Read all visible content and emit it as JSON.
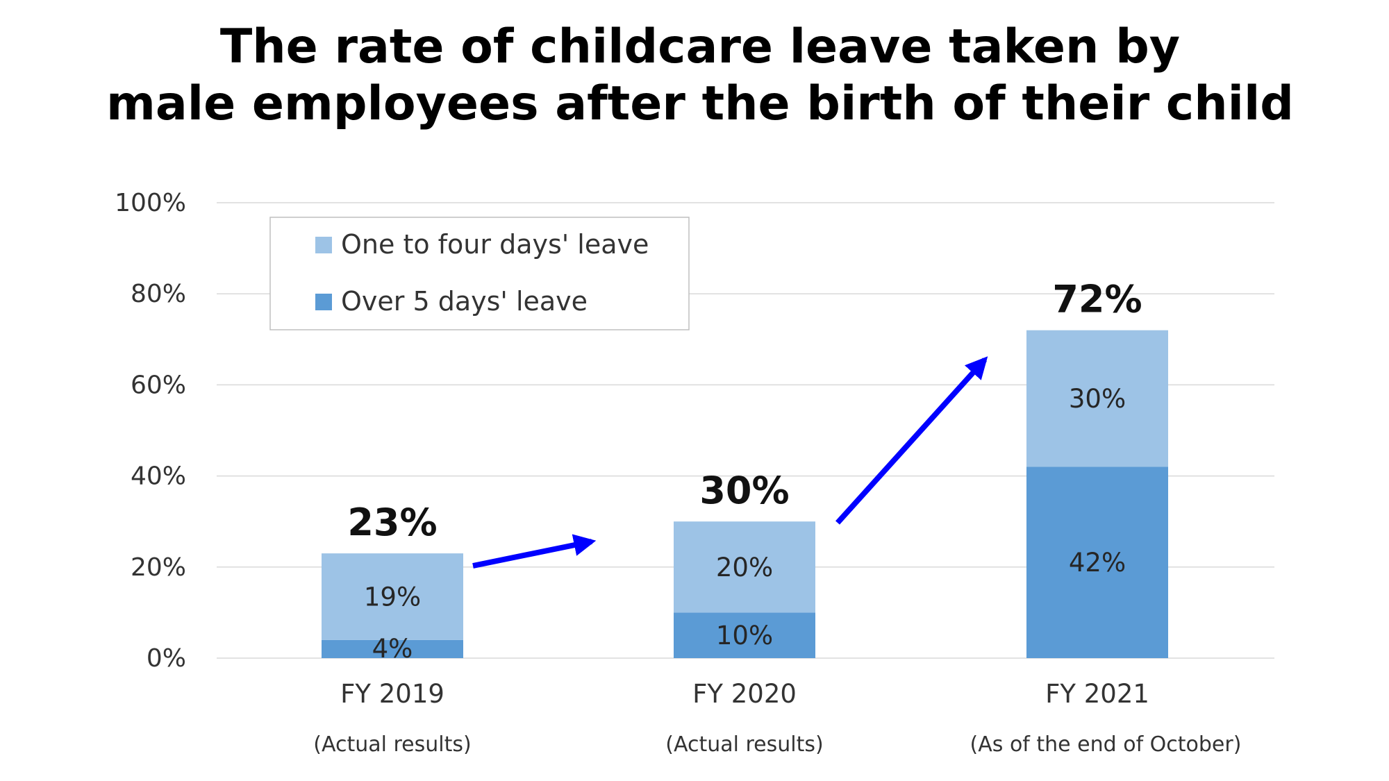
{
  "chart_data": {
    "type": "bar",
    "stacked": true,
    "title_lines": [
      "The rate of childcare leave taken by",
      "male employees after the birth of their child"
    ],
    "categories": [
      "FY 2019",
      "FY 2020",
      "FY 2021"
    ],
    "category_notes": [
      "(Actual results)",
      "(Actual results)",
      "(As of the end of October)"
    ],
    "series": [
      {
        "name": "Over 5 days' leave",
        "values": [
          4,
          10,
          42
        ],
        "labels": [
          "4%",
          "10%",
          "42%"
        ],
        "color": "#5b9bd5"
      },
      {
        "name": "One to four days' leave",
        "values": [
          19,
          20,
          30
        ],
        "labels": [
          "19%",
          "20%",
          "30%"
        ],
        "color": "#9dc3e6"
      }
    ],
    "totals": [
      23,
      30,
      72
    ],
    "total_labels": [
      "23%",
      "30%",
      "72%"
    ],
    "ylim": [
      0,
      100
    ],
    "y_ticks": [
      0,
      20,
      40,
      60,
      80,
      100
    ],
    "y_tick_labels": [
      "0%",
      "20%",
      "40%",
      "60%",
      "80%",
      "100%"
    ],
    "grid": true,
    "legend": {
      "position": "top-left",
      "entries": [
        "One to four days' leave",
        "Over 5 days' leave"
      ]
    },
    "trend_arrows": {
      "color": "#0000ff",
      "count": 2
    },
    "gridline_color": "#d9d9d9"
  }
}
